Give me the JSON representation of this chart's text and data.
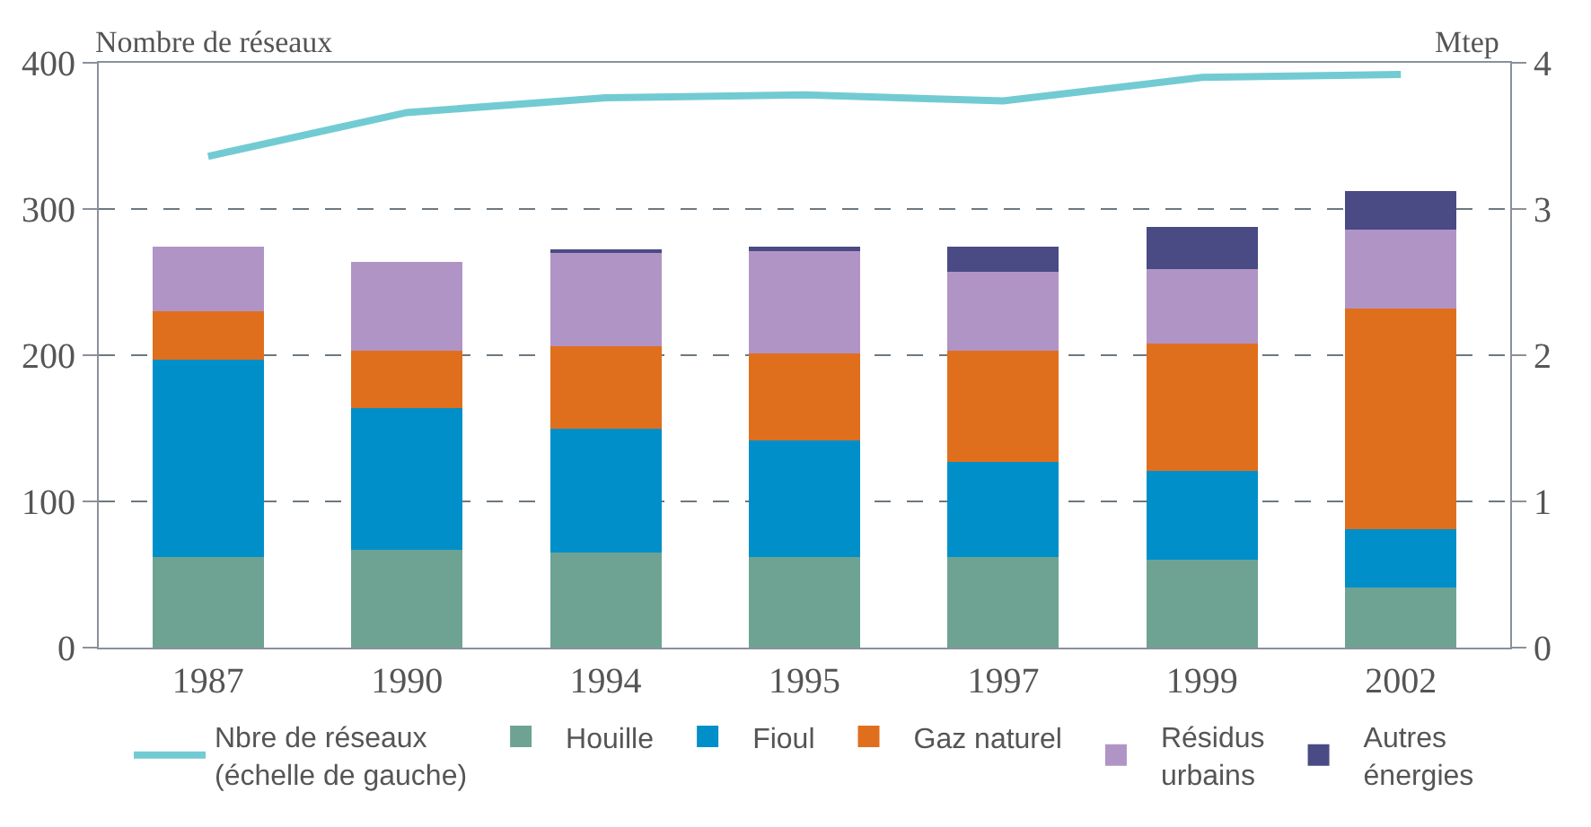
{
  "chart_data": {
    "type": "bar",
    "stacked": true,
    "categories": [
      "1987",
      "1990",
      "1994",
      "1995",
      "1997",
      "1999",
      "2002"
    ],
    "ylabel": "Nombre de réseaux",
    "y2label": "Mtep",
    "ylim": [
      0,
      400
    ],
    "yticks": [
      0,
      100,
      200,
      300,
      400
    ],
    "y2lim": [
      0,
      4
    ],
    "y2ticks": [
      0,
      1,
      2,
      3,
      4
    ],
    "grid": "y",
    "legend": "bottom",
    "marker": "none",
    "series": [
      {
        "name": "Nbre de réseaux\n(échelle de gauche)",
        "type": "line",
        "color": "#72cbd2",
        "values": [
          336,
          366,
          376,
          378,
          374,
          390,
          392
        ]
      },
      {
        "name": "Houille",
        "axis": "y2",
        "color": "#6ea393",
        "values": [
          0.62,
          0.67,
          0.65,
          0.62,
          0.62,
          0.6,
          0.41
        ]
      },
      {
        "name": "Fioul",
        "axis": "y2",
        "color": "#008fc8",
        "values": [
          1.35,
          0.97,
          0.85,
          0.8,
          0.65,
          0.61,
          0.4
        ]
      },
      {
        "name": "Gaz naturel",
        "axis": "y2",
        "color": "#e06f1d",
        "values": [
          0.33,
          0.39,
          0.56,
          0.59,
          0.76,
          0.87,
          1.51
        ]
      },
      {
        "name": "Résidus\nurbains",
        "axis": "y2",
        "color": "#b194c6",
        "values": [
          0.44,
          0.61,
          0.64,
          0.71,
          0.54,
          0.51,
          0.54
        ]
      },
      {
        "name": "Autres\nénergies",
        "axis": "y2",
        "color": "#4a4a85",
        "values": [
          0,
          0,
          0.02,
          0.02,
          0.17,
          0.29,
          0.26
        ]
      }
    ]
  }
}
